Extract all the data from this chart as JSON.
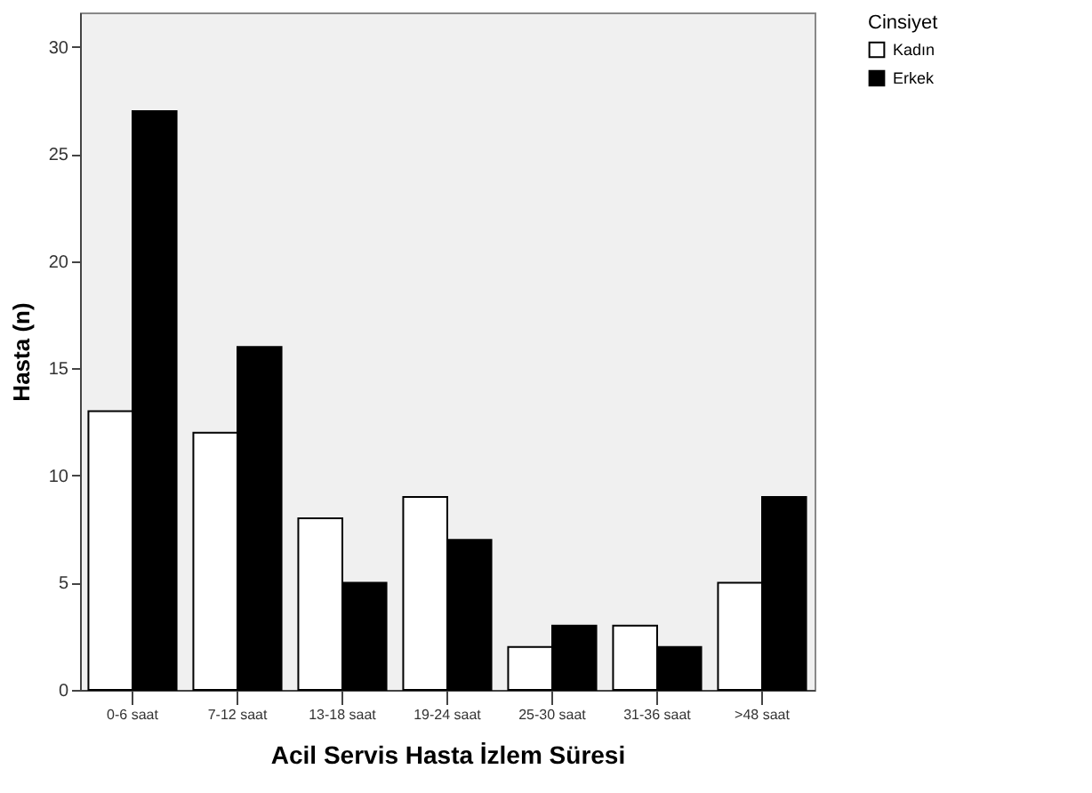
{
  "chart_data": {
    "type": "bar",
    "xlabel": "Acil Servis Hasta İzlem Süresi",
    "ylabel": "Hasta (n)",
    "legend_title": "Cinsiyet",
    "categories": [
      "0-6 saat",
      "7-12 saat",
      "13-18 saat",
      "19-24 saat",
      "25-30 saat",
      "31-36 saat",
      ">48 saat"
    ],
    "series": [
      {
        "name": "Kadın",
        "color": "#ffffff",
        "values": [
          13,
          12,
          8,
          9,
          2,
          3,
          5
        ]
      },
      {
        "name": "Erkek",
        "color": "#000000",
        "values": [
          27,
          16,
          5,
          7,
          3,
          2,
          9
        ]
      }
    ],
    "ylim": [
      0,
      31.6
    ],
    "yticks": [
      0,
      5,
      10,
      15,
      20,
      25,
      30
    ],
    "grid": false,
    "legend": "top right"
  }
}
